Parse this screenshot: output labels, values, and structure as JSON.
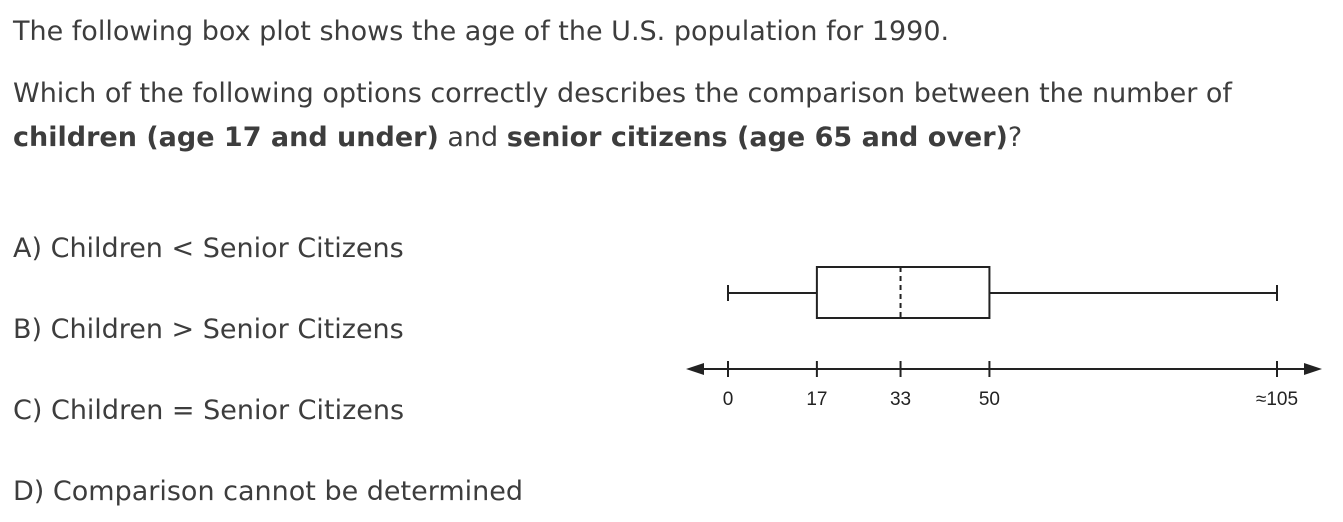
{
  "question": {
    "line1": "The following box plot shows the age of the U.S. population for 1990.",
    "line2_part1": "Which of the following options correctly describes the comparison between the number of ",
    "line2_bold1": "children (age 17 and under)",
    "line2_part2": " and ",
    "line2_bold2": "senior citizens (age 65 and over)",
    "line2_part3": "?"
  },
  "options": [
    {
      "label": "A) Children < Senior Citizens"
    },
    {
      "label": "B) Children > Senior Citizens"
    },
    {
      "label": "C) Children = Senior Citizens"
    },
    {
      "label": "D) Comparison cannot be determined"
    }
  ],
  "chart_data": {
    "type": "boxplot",
    "title": "",
    "xlabel": "",
    "ylabel": "",
    "min": 0,
    "q1": 17,
    "median": 33,
    "q3": 50,
    "max": 105,
    "xlim": [
      0,
      105
    ],
    "ticks": [
      {
        "value": 0,
        "label": "0"
      },
      {
        "value": 17,
        "label": "17"
      },
      {
        "value": 33,
        "label": "33"
      },
      {
        "value": 50,
        "label": "50"
      },
      {
        "value": 105,
        "label": "≈105"
      }
    ],
    "median_style": "dashed",
    "axis_arrows": "both-ends",
    "grid": false
  },
  "colors": {
    "text": "#3d3d3d",
    "plot_stroke": "#222222"
  }
}
